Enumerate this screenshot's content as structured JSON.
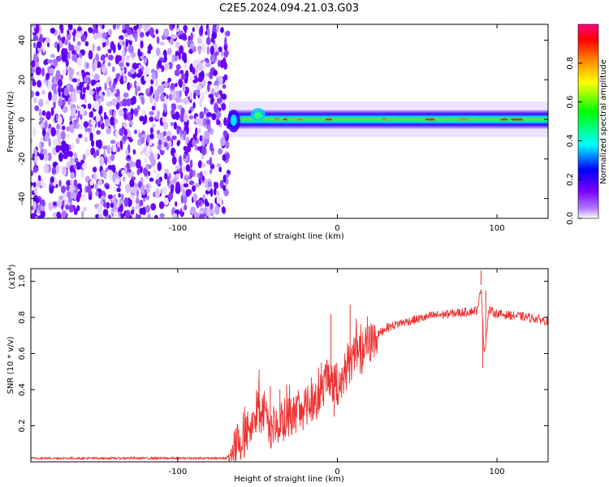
{
  "title": "C2E5.2024.094.21.03.G03",
  "chart_data": [
    {
      "type": "heatmap",
      "xlabel": "Height of straight line (km)",
      "ylabel": "Frequency (Hz)",
      "xlim": [
        -192,
        132
      ],
      "ylim": [
        -50,
        48
      ],
      "xticks": [
        -100,
        0,
        100
      ],
      "yticks": [
        -40,
        -20,
        0,
        20,
        40
      ],
      "noise_region_x": [
        -192,
        -68
      ],
      "signal_band": {
        "x_start": -68,
        "x_end": 132,
        "center_frequency": 0,
        "width": 3
      },
      "colorbar": {
        "label": "Normalized spectral amplitude",
        "range": [
          0.0,
          1.0
        ],
        "ticks": [
          "0.0",
          "0.2",
          "0.4",
          "0.6",
          "0.8"
        ],
        "colors": [
          "#ffffff",
          "#7b00ff",
          "#0000ff",
          "#00ffff",
          "#00ff00",
          "#ffff00",
          "#ff8000",
          "#ff0000",
          "#ff0080"
        ]
      },
      "grid": false
    },
    {
      "type": "line",
      "xlabel": "Height of straight line (km)",
      "ylabel": "SNR (10 * v/v)",
      "y_multiplier": "(x10",
      "y_multiplier_exp": "4",
      "y_multiplier_close": ")",
      "xlim": [
        -192,
        132
      ],
      "ylim": [
        0,
        1.07
      ],
      "xticks": [
        -100,
        0,
        100
      ],
      "yticks": [
        0.2,
        0.4,
        0.6,
        0.8,
        1.0
      ],
      "ytick_labels": [
        "0.2",
        "0.4",
        "0.6",
        "0.8",
        "1.0"
      ],
      "color": "#ee3333",
      "series": [
        {
          "points": [
            [
              -192,
              0.02
            ],
            [
              -150,
              0.02
            ],
            [
              -100,
              0.02
            ],
            [
              -70,
              0.02
            ],
            [
              -60,
              0.1
            ],
            [
              -55,
              0.2
            ],
            [
              -50,
              0.28
            ],
            [
              -45,
              0.22
            ],
            [
              -40,
              0.18
            ],
            [
              -35,
              0.22
            ],
            [
              -30,
              0.25
            ],
            [
              -25,
              0.28
            ],
            [
              -20,
              0.3
            ],
            [
              -15,
              0.34
            ],
            [
              -10,
              0.38
            ],
            [
              -5,
              0.45
            ],
            [
              0,
              0.42
            ],
            [
              5,
              0.5
            ],
            [
              10,
              0.58
            ],
            [
              15,
              0.6
            ],
            [
              20,
              0.65
            ],
            [
              25,
              0.7
            ],
            [
              30,
              0.74
            ],
            [
              40,
              0.77
            ],
            [
              50,
              0.79
            ],
            [
              60,
              0.81
            ],
            [
              70,
              0.82
            ],
            [
              80,
              0.83
            ],
            [
              88,
              0.84
            ],
            [
              90,
              0.98
            ],
            [
              92,
              0.6
            ],
            [
              95,
              0.84
            ],
            [
              100,
              0.82
            ],
            [
              110,
              0.81
            ],
            [
              120,
              0.8
            ],
            [
              132,
              0.78
            ]
          ],
          "spikes": [
            [
              -49,
              0.51
            ],
            [
              -42,
              0.42
            ],
            [
              -36,
              0.4
            ],
            [
              -30,
              0.38
            ],
            [
              -10,
              0.55
            ],
            [
              -4,
              0.82
            ],
            [
              -2,
              0.25
            ],
            [
              8,
              0.87
            ],
            [
              90,
              1.06
            ],
            [
              91,
              0.52
            ],
            [
              93,
              0.95
            ]
          ]
        }
      ],
      "grid": false
    }
  ]
}
